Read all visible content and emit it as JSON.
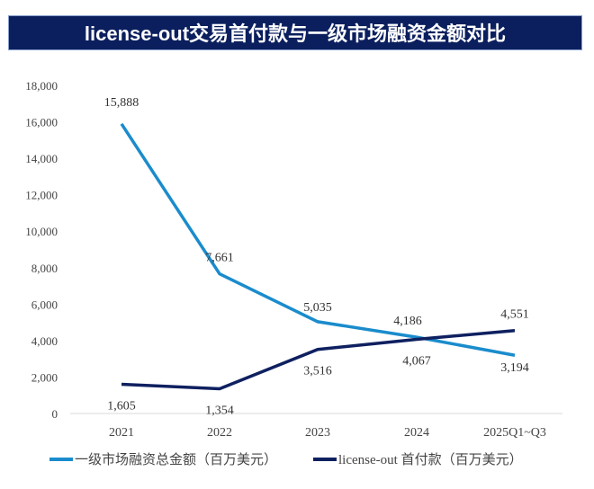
{
  "title": "license-out交易首付款与一级市场融资金额对比",
  "chart_data": {
    "type": "line",
    "title": "license-out交易首付款与一级市场融资金额对比",
    "categories": [
      "2021",
      "2022",
      "2023",
      "2024",
      "2025Q1~Q3"
    ],
    "ylim": [
      0,
      18000
    ],
    "yticks": [
      0,
      2000,
      4000,
      6000,
      8000,
      10000,
      12000,
      14000,
      16000,
      18000
    ],
    "ytick_labels": [
      "0",
      "2,000",
      "4,000",
      "6,000",
      "8,000",
      "10,000",
      "12,000",
      "14,000",
      "16,000",
      "18,000"
    ],
    "grid": false,
    "legend": "bottom",
    "series": [
      {
        "name": "一级市场融资总金额（百万美元）",
        "values": [
          15888,
          7661,
          5035,
          4186,
          3194
        ],
        "labels": [
          "15,888",
          "7,661",
          "5,035",
          "4,186",
          "3,194"
        ],
        "color": "#1a8ccc"
      },
      {
        "name": "license-out 首付款（百万美元）",
        "values": [
          1605,
          1354,
          3516,
          4067,
          4551
        ],
        "labels": [
          "1,605",
          "1,354",
          "3,516",
          "4,067",
          "4,551"
        ],
        "color": "#0f2060"
      }
    ]
  }
}
